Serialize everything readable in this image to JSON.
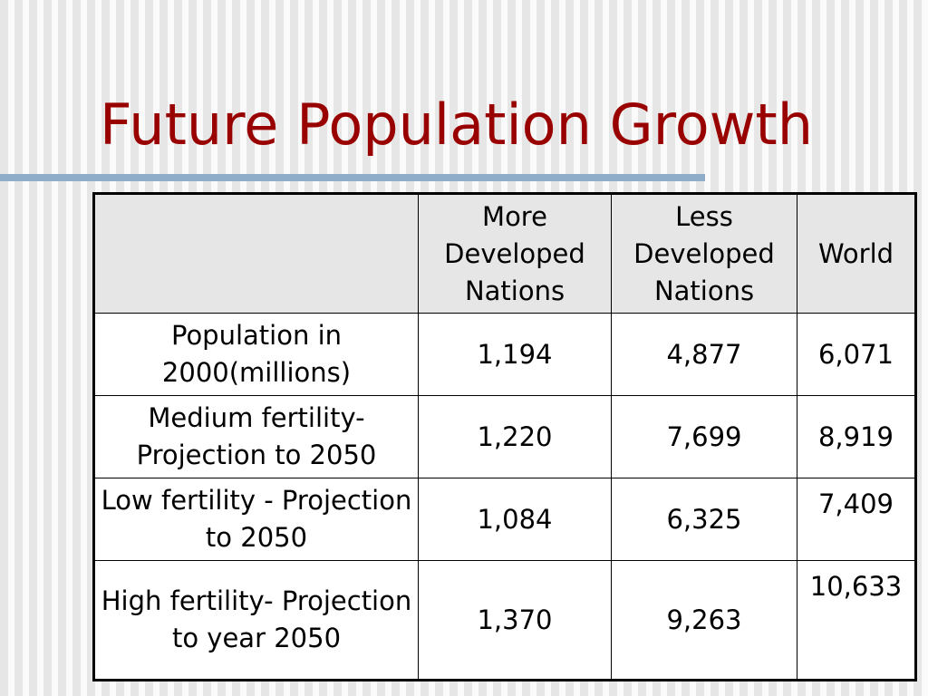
{
  "slide": {
    "title": "Future Population Growth",
    "colors": {
      "title": "#990000",
      "accent_rule": "#8facc8",
      "header_fill": "#e6e6e6"
    }
  },
  "table": {
    "corner_header": "",
    "column_headers": [
      "More Developed Nations",
      "Less Developed Nations",
      "World"
    ],
    "rows": [
      {
        "label": "Population in 2000(millions)",
        "more_developed": "1,194",
        "less_developed": "4,877",
        "world": "6,071"
      },
      {
        "label": "Medium fertility- Projection to 2050",
        "more_developed": "1,220",
        "less_developed": "7,699",
        "world": "8,919"
      },
      {
        "label": "Low fertility - Projection to 2050",
        "more_developed": "1,084",
        "less_developed": "6,325",
        "world": "7,409"
      },
      {
        "label": "High fertility- Projection to year 2050",
        "more_developed": "1,370",
        "less_developed": "9,263",
        "world": "10,633"
      }
    ]
  }
}
